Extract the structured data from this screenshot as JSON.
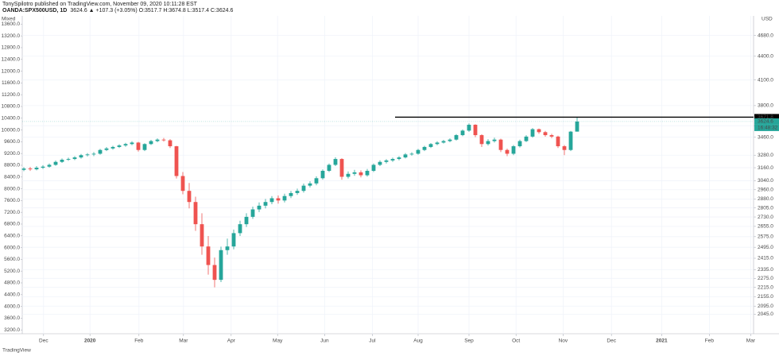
{
  "chart_data": {
    "type": "candlestick",
    "subtitle": "TonySpilotro published on TradingView.com, November 09, 2020 10:11:28 EST",
    "title": "OANDA:SPX500USD, 1D",
    "quote": "3624.6 ▲ +107.3 (+3.05%) O:3517.7 H:3674.8 L:3517.4 C:3624.6",
    "open": [
      3140,
      3152,
      3145,
      3160,
      3170,
      3187,
      3215,
      3236,
      3243,
      3258,
      3280,
      3287,
      3294,
      3331,
      3346,
      3361,
      3376,
      3390,
      3405,
      3331,
      3390,
      3420,
      3435,
      3428,
      3368,
      3083,
      2950,
      2854,
      2672,
      2501,
      2367,
      2265,
      2474,
      2501,
      2602,
      2672,
      2731,
      2792,
      2823,
      2854,
      2886,
      2867,
      2905,
      2931,
      2950,
      2996,
      3016,
      3063,
      3131,
      3187,
      3243,
      3076,
      3103,
      3117,
      3090,
      3131,
      3187,
      3215,
      3229,
      3243,
      3258,
      3287,
      3294,
      3331,
      3361,
      3390,
      3405,
      3420,
      3435,
      3481,
      3528,
      3590,
      3481,
      3390,
      3420,
      3435,
      3331,
      3294,
      3368,
      3420,
      3466,
      3543,
      3512,
      3481,
      3466,
      3368,
      3331,
      3517.7
    ],
    "high": [
      3165,
      3168,
      3175,
      3184,
      3200,
      3228,
      3248,
      3256,
      3270,
      3292,
      3300,
      3310,
      3342,
      3360,
      3372,
      3388,
      3402,
      3418,
      3412,
      3398,
      3432,
      3448,
      3452,
      3440,
      3372,
      3120,
      3020,
      2900,
      2760,
      2580,
      2420,
      2500,
      2560,
      2630,
      2700,
      2760,
      2815,
      2850,
      2880,
      2905,
      2910,
      2925,
      2950,
      2970,
      3015,
      3035,
      3080,
      3145,
      3200,
      3260,
      3250,
      3125,
      3140,
      3135,
      3148,
      3200,
      3230,
      3242,
      3256,
      3270,
      3300,
      3308,
      3342,
      3372,
      3400,
      3418,
      3432,
      3448,
      3492,
      3540,
      3605,
      3595,
      3490,
      3440,
      3455,
      3445,
      3345,
      3380,
      3435,
      3480,
      3555,
      3550,
      3525,
      3495,
      3475,
      3380,
      3525,
      3674.8
    ],
    "low": [
      3128,
      3130,
      3135,
      3148,
      3160,
      3178,
      3205,
      3225,
      3232,
      3246,
      3268,
      3270,
      3285,
      3320,
      3334,
      3350,
      3362,
      3378,
      3315,
      3320,
      3380,
      3408,
      3415,
      3350,
      3060,
      2920,
      2800,
      2620,
      2440,
      2300,
      2215,
      2250,
      2440,
      2480,
      2580,
      2650,
      2715,
      2770,
      2800,
      2835,
      2840,
      2850,
      2888,
      2915,
      2935,
      2980,
      3000,
      3050,
      3120,
      3175,
      3050,
      3060,
      3085,
      3070,
      3078,
      3120,
      3175,
      3200,
      3215,
      3230,
      3248,
      3275,
      3285,
      3320,
      3350,
      3378,
      3395,
      3408,
      3425,
      3470,
      3515,
      3460,
      3360,
      3375,
      3405,
      3310,
      3270,
      3280,
      3355,
      3410,
      3455,
      3495,
      3465,
      3450,
      3350,
      3280,
      3320,
      3517.4
    ],
    "close": [
      3152,
      3145,
      3160,
      3170,
      3187,
      3215,
      3236,
      3243,
      3258,
      3280,
      3287,
      3294,
      3331,
      3346,
      3361,
      3376,
      3390,
      3405,
      3331,
      3390,
      3420,
      3435,
      3428,
      3368,
      3083,
      2950,
      2854,
      2672,
      2501,
      2367,
      2265,
      2474,
      2501,
      2602,
      2672,
      2731,
      2792,
      2823,
      2854,
      2886,
      2867,
      2905,
      2931,
      2950,
      2996,
      3016,
      3063,
      3131,
      3187,
      3243,
      3076,
      3103,
      3117,
      3090,
      3131,
      3187,
      3215,
      3229,
      3243,
      3258,
      3287,
      3294,
      3331,
      3361,
      3390,
      3405,
      3420,
      3435,
      3481,
      3528,
      3590,
      3481,
      3390,
      3420,
      3435,
      3331,
      3294,
      3368,
      3420,
      3466,
      3543,
      3512,
      3481,
      3466,
      3368,
      3331,
      3517.3,
      3624.6
    ],
    "up_color": "#26a69a",
    "down_color": "#ef5350",
    "log_scale": true,
    "ylabel": "USD",
    "ylim": [
      1930,
      4960
    ],
    "yticks": [
      {
        "value": 4680,
        "label": "4680.0"
      },
      {
        "value": 4400,
        "label": "4400.0"
      },
      {
        "value": 4100,
        "label": "4100.0"
      },
      {
        "value": 3800,
        "label": "3800.0"
      },
      {
        "value": 3580,
        "label": "3580.0"
      },
      {
        "value": 3460,
        "label": "3460.0"
      },
      {
        "value": 3280,
        "label": "3280.0"
      },
      {
        "value": 3160,
        "label": "3160.0"
      },
      {
        "value": 3040,
        "label": "3040.0"
      },
      {
        "value": 2960,
        "label": "2960.0"
      },
      {
        "value": 2880,
        "label": "2880.0"
      },
      {
        "value": 2805,
        "label": "2805.0"
      },
      {
        "value": 2730,
        "label": "2730.0"
      },
      {
        "value": 2655,
        "label": "2655.0"
      },
      {
        "value": 2575,
        "label": "2575.0"
      },
      {
        "value": 2495,
        "label": "2495.0"
      },
      {
        "value": 2415,
        "label": "2415.0"
      },
      {
        "value": 2335,
        "label": "2335.0"
      },
      {
        "value": 2275,
        "label": "2275.0"
      },
      {
        "value": 2215,
        "label": "2215.0"
      },
      {
        "value": 2155,
        "label": "2155.0"
      },
      {
        "value": 2095,
        "label": "2095.0"
      },
      {
        "value": 2045,
        "label": "2045.0"
      }
    ],
    "y2label": "Mixed",
    "y2lim": [
      3070,
      13880
    ],
    "y2ticks": [
      {
        "value": 13600,
        "label": "13600.0"
      },
      {
        "value": 13200,
        "label": "13200.0"
      },
      {
        "value": 12800,
        "label": "12800.0"
      },
      {
        "value": 12400,
        "label": "12400.0"
      },
      {
        "value": 12000,
        "label": "12000.0"
      },
      {
        "value": 11600,
        "label": "11600.0"
      },
      {
        "value": 11200,
        "label": "11200.0"
      },
      {
        "value": 10800,
        "label": "10800.0"
      },
      {
        "value": 10400,
        "label": "10400.0"
      },
      {
        "value": 10000,
        "label": "10000.0"
      },
      {
        "value": 9600,
        "label": "9600.0"
      },
      {
        "value": 9200,
        "label": "9200.0"
      },
      {
        "value": 8800,
        "label": "8800.0"
      },
      {
        "value": 8400,
        "label": "8400.0"
      },
      {
        "value": 8000,
        "label": "8000.0"
      },
      {
        "value": 7600,
        "label": "7600.0"
      },
      {
        "value": 7200,
        "label": "7200.0"
      },
      {
        "value": 6800,
        "label": "6800.0"
      },
      {
        "value": 6400,
        "label": "6400.0"
      },
      {
        "value": 6000,
        "label": "6000.0"
      },
      {
        "value": 5600,
        "label": "5600.0"
      },
      {
        "value": 5200,
        "label": "5200.0"
      },
      {
        "value": 4800,
        "label": "4800.0"
      },
      {
        "value": 4400,
        "label": "4400.0"
      },
      {
        "value": 4000,
        "label": "4000.0"
      },
      {
        "value": 3600,
        "label": "3600.0"
      },
      {
        "value": 3200,
        "label": "3200.0"
      }
    ],
    "xlim": [
      -0.25,
      114.75
    ],
    "xticks": [
      {
        "value": 3.1,
        "label": "Dec"
      },
      {
        "value": 10.4,
        "label": "2020"
      },
      {
        "value": 18.1,
        "label": "Feb"
      },
      {
        "value": 25.1,
        "label": "Mar"
      },
      {
        "value": 32.6,
        "label": "Apr"
      },
      {
        "value": 39.9,
        "label": "May"
      },
      {
        "value": 47.3,
        "label": "Jun"
      },
      {
        "value": 54.8,
        "label": "Jul"
      },
      {
        "value": 62,
        "label": "Aug"
      },
      {
        "value": 70,
        "label": "Sep"
      },
      {
        "value": 77.4,
        "label": "Oct"
      },
      {
        "value": 84.8,
        "label": "Nov"
      },
      {
        "value": 92.4,
        "label": "Dec"
      },
      {
        "value": 100.3,
        "label": "2021"
      },
      {
        "value": 107.8,
        "label": "Feb"
      },
      {
        "value": 114.3,
        "label": "Mar"
      }
    ],
    "grid": true,
    "horizontal_line": {
      "value": 3671.8,
      "color": "#000000"
    },
    "countdown": "16:48:32",
    "footer": "TradingView"
  }
}
